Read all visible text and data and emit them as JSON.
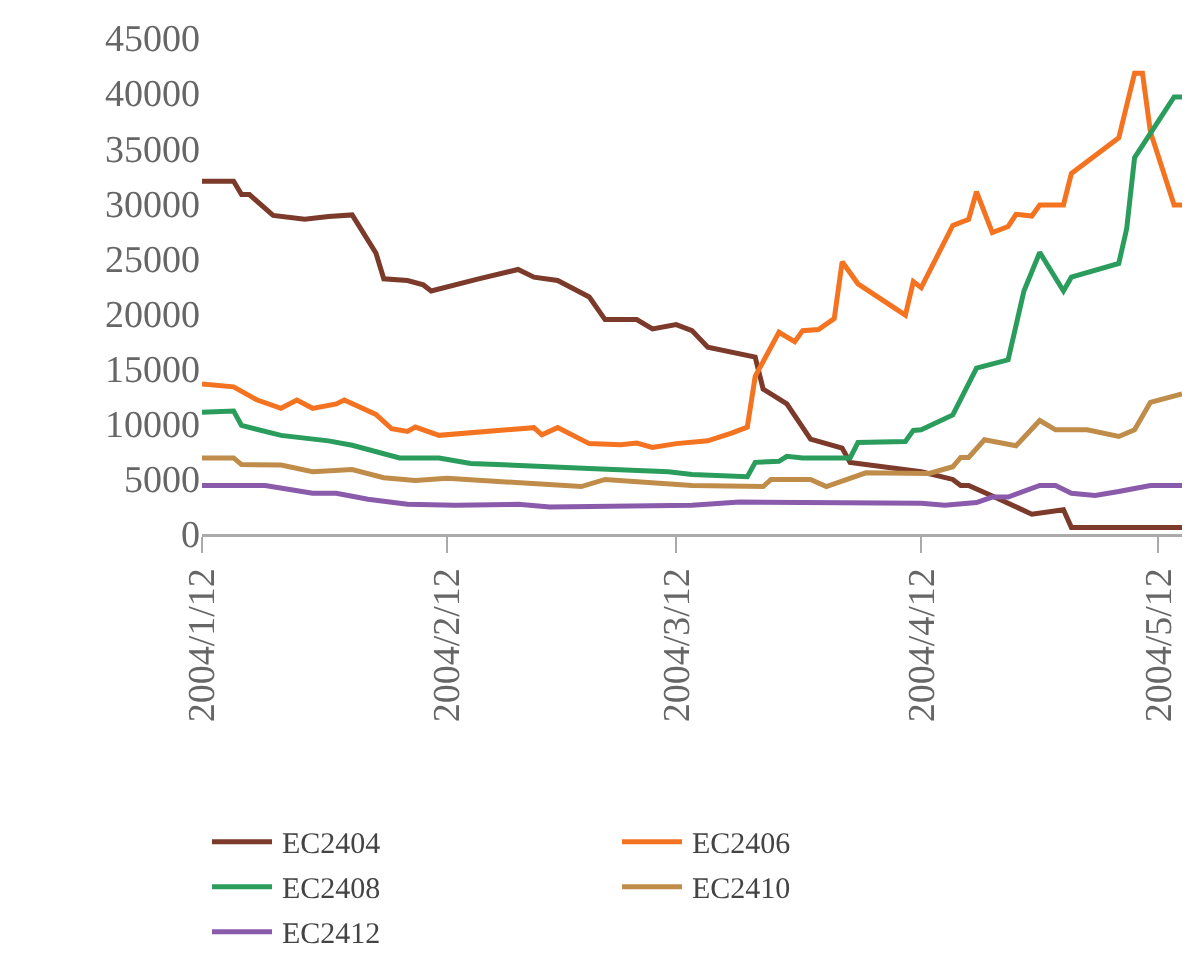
{
  "chart_data": {
    "type": "line",
    "xlim": [
      "2004-01-12",
      "2004-05-15"
    ],
    "xticks": [
      {
        "value": "2004-01-12",
        "label": "2004/1/12"
      },
      {
        "value": "2004-02-12",
        "label": "2004/2/12"
      },
      {
        "value": "2004-03-12",
        "label": "2004/3/12"
      },
      {
        "value": "2004-04-12",
        "label": "2004/4/12"
      },
      {
        "value": "2004-05-12",
        "label": "2004/5/12"
      }
    ],
    "ylim": [
      0,
      45000
    ],
    "yticks": [
      0,
      5000,
      10000,
      15000,
      20000,
      25000,
      30000,
      35000,
      40000,
      45000
    ],
    "grid": false,
    "legend": "bottom",
    "line_style": "solid",
    "marker": "none",
    "series": [
      {
        "name": "EC2404",
        "color": "#7b3a2a",
        "x": [
          "2004-01-12",
          "2004-01-16",
          "2004-01-17",
          "2004-01-18",
          "2004-01-21",
          "2004-01-25",
          "2004-01-28",
          "2004-01-31",
          "2004-02-03",
          "2004-02-04",
          "2004-02-07",
          "2004-02-09",
          "2004-02-10",
          "2004-02-16",
          "2004-02-21",
          "2004-02-23",
          "2004-02-26",
          "2004-03-01",
          "2004-03-03",
          "2004-03-07",
          "2004-03-09",
          "2004-03-12",
          "2004-03-14",
          "2004-03-16",
          "2004-03-22",
          "2004-03-23",
          "2004-03-26",
          "2004-03-29",
          "2004-04-02",
          "2004-04-03",
          "2004-04-12",
          "2004-04-16",
          "2004-04-17",
          "2004-04-18",
          "2004-04-21",
          "2004-04-26",
          "2004-04-30",
          "2004-05-01",
          "2004-05-15"
        ],
        "values": [
          32000,
          32000,
          30800,
          30800,
          28900,
          28550,
          28800,
          28950,
          25500,
          23150,
          23000,
          22600,
          22050,
          23150,
          24000,
          23300,
          23000,
          21500,
          19450,
          19450,
          18600,
          19000,
          18450,
          16950,
          16050,
          13150,
          11800,
          8600,
          7800,
          6500,
          5650,
          4950,
          4400,
          4400,
          3450,
          1800,
          2200,
          600,
          600
        ]
      },
      {
        "name": "EC2406",
        "color": "#f47321",
        "x": [
          "2004-01-12",
          "2004-01-16",
          "2004-01-19",
          "2004-01-22",
          "2004-01-24",
          "2004-01-26",
          "2004-01-29",
          "2004-01-30",
          "2004-02-03",
          "2004-02-05",
          "2004-02-07",
          "2004-02-08",
          "2004-02-11",
          "2004-02-23",
          "2004-02-24",
          "2004-02-26",
          "2004-03-01",
          "2004-03-05",
          "2004-03-07",
          "2004-03-09",
          "2004-03-12",
          "2004-03-16",
          "2004-03-19",
          "2004-03-21",
          "2004-03-22",
          "2004-03-25",
          "2004-03-27",
          "2004-03-28",
          "2004-03-30",
          "2004-04-01",
          "2004-04-02",
          "2004-04-04",
          "2004-04-10",
          "2004-04-11",
          "2004-04-12",
          "2004-04-16",
          "2004-04-18",
          "2004-04-19",
          "2004-04-21",
          "2004-04-23",
          "2004-04-24",
          "2004-04-26",
          "2004-04-27",
          "2004-04-30",
          "2004-05-01",
          "2004-05-07",
          "2004-05-09",
          "2004-05-10",
          "2004-05-11",
          "2004-05-14",
          "2004-05-15"
        ],
        "values": [
          13600,
          13350,
          12150,
          11400,
          12150,
          11400,
          11800,
          12150,
          10850,
          9550,
          9300,
          9700,
          8950,
          9650,
          9000,
          9650,
          8200,
          8100,
          8250,
          7850,
          8200,
          8450,
          9150,
          9700,
          14300,
          18300,
          17450,
          18450,
          18550,
          19550,
          24700,
          22700,
          19850,
          22900,
          22350,
          28000,
          28550,
          31050,
          27350,
          27900,
          29000,
          28850,
          29850,
          29850,
          32700,
          35950,
          41800,
          41800,
          36500,
          29850,
          29850
        ]
      },
      {
        "name": "EC2408",
        "color": "#2a9d5c",
        "x": [
          "2004-01-12",
          "2004-01-16",
          "2004-01-17",
          "2004-01-22",
          "2004-01-28",
          "2004-01-31",
          "2004-02-06",
          "2004-02-11",
          "2004-02-15",
          "2004-03-01",
          "2004-03-11",
          "2004-03-14",
          "2004-03-21",
          "2004-03-22",
          "2004-03-25",
          "2004-03-26",
          "2004-03-28",
          "2004-04-03",
          "2004-04-04",
          "2004-04-10",
          "2004-04-11",
          "2004-04-12",
          "2004-04-16",
          "2004-04-19",
          "2004-04-23",
          "2004-04-25",
          "2004-04-27",
          "2004-04-30",
          "2004-05-01",
          "2004-05-07",
          "2004-05-08",
          "2004-05-09",
          "2004-05-14",
          "2004-05-15"
        ],
        "values": [
          11050,
          11150,
          9850,
          8950,
          8450,
          8050,
          6900,
          6900,
          6400,
          5950,
          5650,
          5400,
          5200,
          6500,
          6600,
          7050,
          6900,
          6900,
          8300,
          8400,
          9400,
          9450,
          10800,
          15050,
          15800,
          22050,
          25550,
          22050,
          23300,
          24550,
          27700,
          34150,
          39650,
          39650
        ]
      },
      {
        "name": "EC2410",
        "color": "#c08c4a",
        "x": [
          "2004-01-12",
          "2004-01-16",
          "2004-01-17",
          "2004-01-22",
          "2004-01-26",
          "2004-01-31",
          "2004-02-04",
          "2004-02-08",
          "2004-02-12",
          "2004-02-29",
          "2004-03-03",
          "2004-03-14",
          "2004-03-23",
          "2004-03-24",
          "2004-03-29",
          "2004-03-31",
          "2004-04-05",
          "2004-04-13",
          "2004-04-16",
          "2004-04-17",
          "2004-04-18",
          "2004-04-20",
          "2004-04-24",
          "2004-04-27",
          "2004-04-29",
          "2004-05-03",
          "2004-05-07",
          "2004-05-09",
          "2004-05-11",
          "2004-05-15"
        ],
        "values": [
          6900,
          6900,
          6300,
          6250,
          5650,
          5850,
          5100,
          4850,
          5050,
          4300,
          4950,
          4400,
          4300,
          4950,
          4950,
          4300,
          5550,
          5500,
          6100,
          6950,
          6950,
          8550,
          8000,
          10300,
          9450,
          9450,
          8850,
          9450,
          11950,
          12700
        ]
      },
      {
        "name": "EC2412",
        "color": "#8a5aab",
        "x": [
          "2004-01-12",
          "2004-01-20",
          "2004-01-26",
          "2004-01-29",
          "2004-02-02",
          "2004-02-07",
          "2004-02-13",
          "2004-02-21",
          "2004-02-25",
          "2004-03-14",
          "2004-03-20",
          "2004-04-12",
          "2004-04-15",
          "2004-04-19",
          "2004-04-21",
          "2004-04-23",
          "2004-04-27",
          "2004-04-29",
          "2004-05-01",
          "2004-05-04",
          "2004-05-07",
          "2004-05-11",
          "2004-05-15"
        ],
        "values": [
          4400,
          4400,
          3700,
          3700,
          3150,
          2700,
          2600,
          2700,
          2450,
          2600,
          2900,
          2800,
          2600,
          2850,
          3350,
          3350,
          4400,
          4400,
          3700,
          3500,
          3850,
          4400,
          4400
        ]
      }
    ]
  }
}
